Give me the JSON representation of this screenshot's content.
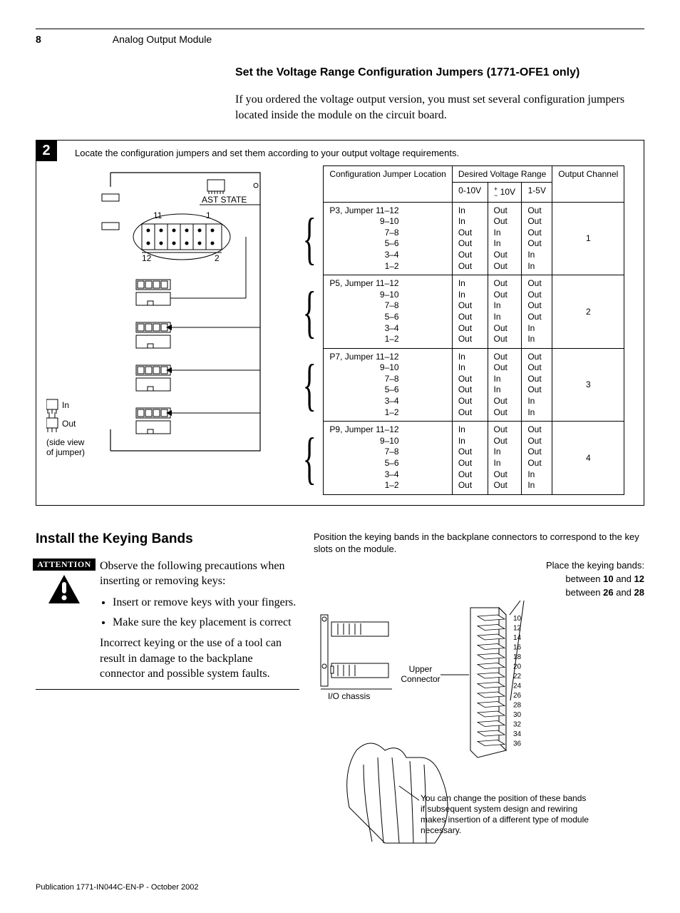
{
  "page_number": "8",
  "header_title": "Analog Output Module",
  "section1": {
    "heading": "Set the Voltage Range Configuration Jumpers (1771-OFE1 only)",
    "intro": "If you ordered the voltage output version, you must set several configuration jumpers located inside the module on the circuit board."
  },
  "figure": {
    "step": "2",
    "caption": "Locate the configuration jumpers and set them according to your output voltage requirements.",
    "circuit": {
      "ast_state": "AST STATE",
      "label_11": "11",
      "label_1": "1",
      "label_12": "12",
      "label_2": "2",
      "legend_in": "In",
      "legend_out": "Out",
      "legend_note": "(side view\nof jumper)"
    },
    "table": {
      "hdr_config": "Configuration Jumper Location",
      "hdr_desired": "Desired Voltage Range",
      "hdr_output": "Output Channel",
      "col_0_10v": "0-10V",
      "col_pm10v_pre": "±",
      "col_pm10v": " 10V",
      "col_1_5v": "1-5V",
      "pins": [
        "11–12",
        "9–10",
        "7–8",
        "5–6",
        "3–4",
        "1–2"
      ],
      "rows": [
        {
          "jumper": "P3, Jumper",
          "v010": [
            "In",
            "In",
            "Out",
            "Out",
            "Out",
            "Out"
          ],
          "pm10": [
            "Out",
            "Out",
            "In",
            "In",
            "Out",
            "Out"
          ],
          "v15": [
            "Out",
            "Out",
            "Out",
            "Out",
            "In",
            "In"
          ],
          "ch": "1"
        },
        {
          "jumper": "P5, Jumper",
          "v010": [
            "In",
            "In",
            "Out",
            "Out",
            "Out",
            "Out"
          ],
          "pm10": [
            "Out",
            "Out",
            "In",
            "In",
            "Out",
            "Out"
          ],
          "v15": [
            "Out",
            "Out",
            "Out",
            "Out",
            "In",
            "In"
          ],
          "ch": "2"
        },
        {
          "jumper": "P7, Jumper",
          "v010": [
            "In",
            "In",
            "Out",
            "Out",
            "Out",
            "Out"
          ],
          "pm10": [
            "Out",
            "Out",
            "In",
            "In",
            "Out",
            "Out"
          ],
          "v15": [
            "Out",
            "Out",
            "Out",
            "Out",
            "In",
            "In"
          ],
          "ch": "3"
        },
        {
          "jumper": "P9, Jumper",
          "v010": [
            "In",
            "In",
            "Out",
            "Out",
            "Out",
            "Out"
          ],
          "pm10": [
            "Out",
            "Out",
            "In",
            "In",
            "Out",
            "Out"
          ],
          "v15": [
            "Out",
            "Out",
            "Out",
            "Out",
            "In",
            "In"
          ],
          "ch": "4"
        }
      ]
    }
  },
  "section2": {
    "heading": "Install the Keying Bands",
    "attention_label": "ATTENTION",
    "para1": "Observe the following precautions when inserting or removing keys:",
    "bullet1": "Insert or remove keys with your fingers.",
    "bullet2": "Make sure the key placement is correct",
    "para2": "Incorrect keying or the use of a tool can result in damage to the backplane connector and possible system faults.",
    "right_caption": "Position the keying bands in the backplane connectors to correspond to the key slots on the module.",
    "place_label": "Place the keying bands:",
    "between1_a": "10",
    "between1_b": "12",
    "between1_pre": "between ",
    "between_and": " and ",
    "between2_a": "26",
    "between2_b": "28",
    "upper_connector": "Upper\nConnector",
    "io_chassis": "I/O chassis",
    "note_bottom": "You can change the position of these bands if subsequent system design and rewiring makes insertion of a different type of module necessary.",
    "slot_numbers": [
      "10",
      "12",
      "14",
      "16",
      "18",
      "20",
      "22",
      "24",
      "26",
      "28",
      "30",
      "32",
      "34",
      "36"
    ]
  },
  "footer": "Publication 1771-IN044C-EN-P - October 2002",
  "colors": {
    "text": "#000000",
    "bg": "#ffffff",
    "stroke": "#000000",
    "fill_light": "#ffffff"
  }
}
